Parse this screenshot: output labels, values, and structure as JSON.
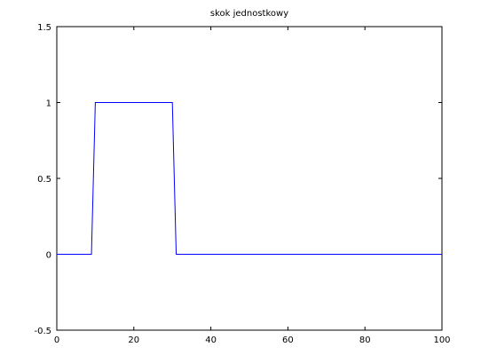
{
  "chart_data": {
    "type": "line",
    "title": "skok jednostkowy",
    "xlabel": "",
    "ylabel": "",
    "xlim": [
      0,
      100
    ],
    "ylim": [
      -0.5,
      1.5
    ],
    "xticks": [
      0,
      20,
      40,
      60,
      80,
      100
    ],
    "yticks": [
      -0.5,
      0,
      0.5,
      1,
      1.5
    ],
    "x_tick_labels": [
      "0",
      "20",
      "40",
      "60",
      "80",
      "100"
    ],
    "y_tick_labels": [
      "-0.5",
      "0",
      "0.5",
      "1",
      "1.5"
    ],
    "grid": false,
    "legend": "none",
    "series": [
      {
        "color": "#0000ff",
        "x": [
          0,
          9,
          10,
          30,
          31,
          100
        ],
        "y": [
          0,
          0,
          1,
          1,
          0,
          0
        ]
      }
    ]
  }
}
